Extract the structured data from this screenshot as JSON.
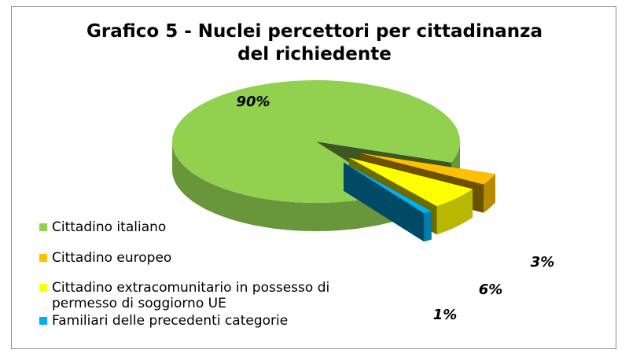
{
  "chart_data": {
    "type": "pie",
    "title": "Grafico 5 - Nuclei percettori per cittadinanza del richiedente",
    "categories": [
      "Cittadino italiano",
      "Cittadino europeo",
      "Cittadino extracomunitario in possesso di permesso di soggiorno UE",
      "Familiari delle precedenti categorie"
    ],
    "values": [
      90,
      3,
      6,
      1
    ],
    "value_labels": [
      "90%",
      "3%",
      "6%",
      "1%"
    ],
    "colors": [
      "#92d050",
      "#ffc000",
      "#ffff00",
      "#00b0f0"
    ]
  }
}
